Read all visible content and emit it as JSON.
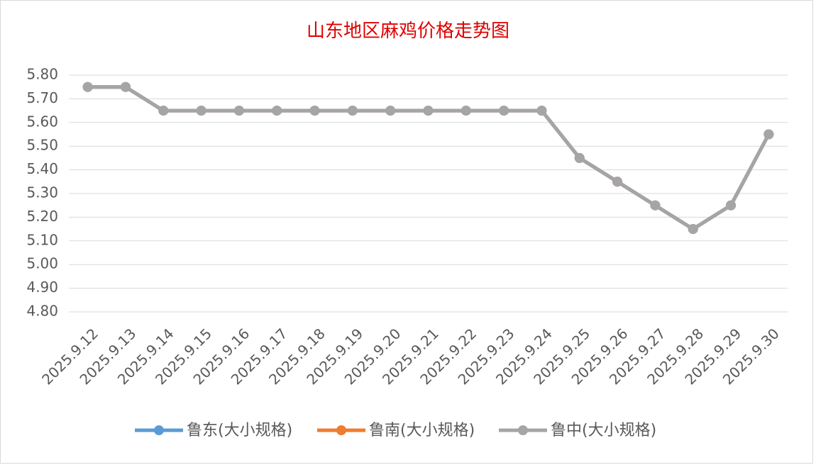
{
  "chart_data": {
    "type": "line",
    "title": "山东地区麻鸡价格走势图",
    "categories": [
      "2025.9.12",
      "2025.9.13",
      "2025.9.14",
      "2025.9.15",
      "2025.9.16",
      "2025.9.17",
      "2025.9.18",
      "2025.9.19",
      "2025.9.20",
      "2025.9.21",
      "2025.9.22",
      "2025.9.23",
      "2025.9.24",
      "2025.9.25",
      "2025.9.26",
      "2025.9.27",
      "2025.9.28",
      "2025.9.29",
      "2025.9.30"
    ],
    "series": [
      {
        "name": "鲁东(大小规格)",
        "color": "#5b9bd5",
        "values": [
          5.75,
          5.75,
          5.65,
          5.65,
          5.65,
          5.65,
          5.65,
          5.65,
          5.65,
          5.65,
          5.65,
          5.65,
          5.65,
          5.45,
          5.35,
          5.25,
          5.15,
          5.25,
          5.55
        ]
      },
      {
        "name": "鲁南(大小规格)",
        "color": "#ed7d31",
        "values": [
          5.75,
          5.75,
          5.65,
          5.65,
          5.65,
          5.65,
          5.65,
          5.65,
          5.65,
          5.65,
          5.65,
          5.65,
          5.65,
          5.45,
          5.35,
          5.25,
          5.15,
          5.25,
          5.55
        ]
      },
      {
        "name": "鲁中(大小规格)",
        "color": "#a5a5a5",
        "values": [
          5.75,
          5.75,
          5.65,
          5.65,
          5.65,
          5.65,
          5.65,
          5.65,
          5.65,
          5.65,
          5.65,
          5.65,
          5.65,
          5.45,
          5.35,
          5.25,
          5.15,
          5.25,
          5.55
        ]
      }
    ],
    "ylim": [
      4.8,
      5.8
    ],
    "yticks": [
      {
        "value": 4.8,
        "label": "4.80"
      },
      {
        "value": 4.9,
        "label": "4.90"
      },
      {
        "value": 5.0,
        "label": "5.00"
      },
      {
        "value": 5.1,
        "label": "5.10"
      },
      {
        "value": 5.2,
        "label": "5.20"
      },
      {
        "value": 5.3,
        "label": "5.30"
      },
      {
        "value": 5.4,
        "label": "5.40"
      },
      {
        "value": 5.5,
        "label": "5.50"
      },
      {
        "value": 5.6,
        "label": "5.60"
      },
      {
        "value": 5.7,
        "label": "5.70"
      },
      {
        "value": 5.8,
        "label": "5.80"
      }
    ],
    "grid": true,
    "legend": "bottom"
  }
}
